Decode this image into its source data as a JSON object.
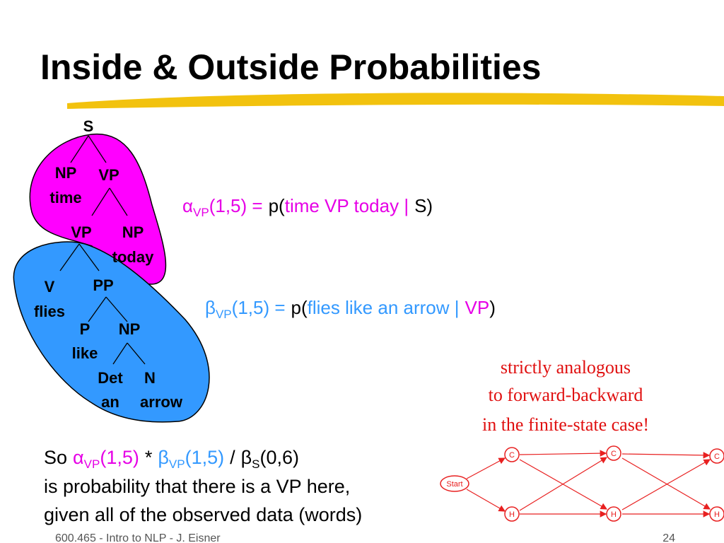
{
  "title": "Inside & Outside Probabilities",
  "tree": {
    "labels": [
      "S",
      "NP",
      "VP",
      "time",
      "VP",
      "NP",
      "today",
      "V",
      "flies",
      "PP",
      "P",
      "NP",
      "like",
      "Det",
      "N",
      "an",
      "arrow"
    ]
  },
  "alpha_formula": {
    "symbol": "α",
    "sub": "VP",
    "args": "(1,5) =",
    "p": "p(",
    "given": "time VP today |",
    "cond": "S)"
  },
  "beta_formula": {
    "symbol": "β",
    "sub": "VP",
    "args": "(1,5) =",
    "p": "p(",
    "given": "flies like an arrow |",
    "cond": "VP",
    "close": ")"
  },
  "note": [
    "strictly analogous",
    "to forward-backward",
    "in the finite-state case!"
  ],
  "summary": {
    "line1": [
      "So",
      "α",
      "VP",
      "(1,5)",
      "*",
      "β",
      "VP",
      "(1,5)",
      "/",
      "β",
      "S",
      "(0,6)"
    ],
    "line2": "is probability that there is a VP here,",
    "line3": "given all of the observed data (words)"
  },
  "diagram": {
    "start": "Start",
    "states": [
      "C",
      "C",
      "C",
      "H",
      "H",
      "H"
    ]
  },
  "footer": {
    "left": "600.465 - Intro to NLP - J. Eisner",
    "page": "24"
  }
}
